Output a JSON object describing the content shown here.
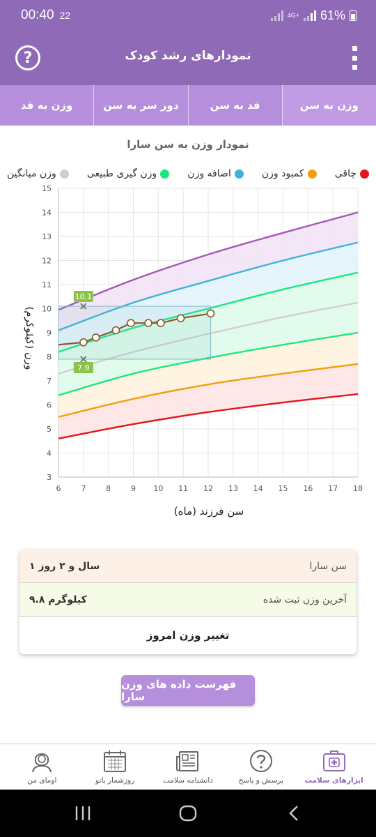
{
  "status_bar": {
    "time": "00:40",
    "sub": "22",
    "network": "4G+",
    "battery": "61%"
  },
  "header": {
    "title": "نمودارهای رشد کودک",
    "help_icon": "help-circle-icon",
    "menu_icon": "more-vertical-icon"
  },
  "tabs": [
    {
      "label": "وزن به سن",
      "active": true
    },
    {
      "label": "قد به سن",
      "active": false
    },
    {
      "label": "دور سر به سن",
      "active": false
    },
    {
      "label": "وزن به قد",
      "active": false
    }
  ],
  "chart_title": "نمودار وزن به سن سارا",
  "legend": [
    {
      "label": "چاقی",
      "color": "#e3161b"
    },
    {
      "label": "کمبود وزن",
      "color": "#f29d0f"
    },
    {
      "label": "اضافه وزن",
      "color": "#3db4d3"
    },
    {
      "label": "وزن گیری طبیعی",
      "color": "#1ee67f"
    },
    {
      "label": "وزن میانگین",
      "color": "#cfcfcf"
    }
  ],
  "chart_data": {
    "type": "line",
    "xlabel": "سن فرزند (ماه)",
    "ylabel": "وزن (کیلوگرم)",
    "xlim": [
      6,
      18
    ],
    "ylim": [
      3,
      15
    ],
    "x_ticks": [
      6,
      7,
      8,
      9,
      10,
      11,
      12,
      13,
      14,
      15,
      16,
      17,
      18
    ],
    "y_ticks": [
      3,
      4,
      5,
      6,
      7,
      8,
      9,
      10,
      11,
      12,
      13,
      14,
      15
    ],
    "grid": true,
    "curve_x": [
      6,
      9,
      12,
      15,
      18
    ],
    "series": [
      {
        "color": "#e3161b",
        "values": [
          4.6,
          5.2,
          5.7,
          6.1,
          6.45
        ]
      },
      {
        "color": "#f29d0f",
        "values": [
          5.5,
          6.25,
          6.85,
          7.3,
          7.7
        ]
      },
      {
        "color": "#1ee67f",
        "values": [
          6.4,
          7.3,
          7.95,
          8.5,
          9.0
        ]
      },
      {
        "color": "#cfcfcf",
        "values": [
          7.3,
          8.2,
          8.95,
          9.65,
          10.25
        ]
      },
      {
        "color": "#1ee67f",
        "values": [
          8.2,
          9.2,
          10.0,
          10.8,
          11.5
        ]
      },
      {
        "color": "#3db4d3",
        "values": [
          9.1,
          10.25,
          11.15,
          12.0,
          12.75
        ]
      },
      {
        "color": "#a855b8",
        "values": [
          9.95,
          11.2,
          12.25,
          13.15,
          14.0
        ]
      }
    ],
    "measurements": {
      "color": "#8b5a2b",
      "x": [
        6,
        7,
        7.5,
        8.3,
        8.9,
        9.6,
        10.1,
        10.9,
        12.1
      ],
      "y": [
        8.5,
        8.6,
        8.8,
        9.1,
        9.4,
        9.4,
        9.4,
        9.6,
        9.8
      ]
    },
    "reference_box": {
      "x": [
        6,
        12.1
      ],
      "y": [
        7.9,
        10.1
      ]
    },
    "markers": [
      {
        "x": 7,
        "y": 10.1,
        "label": "10.1"
      },
      {
        "x": 7,
        "y": 7.9,
        "label": "7.9"
      }
    ]
  },
  "info": {
    "age_label": "سن سارا",
    "age_value": "۱ سال و ۲ روز",
    "weight_label": "آخرین وزن ثبت شده",
    "weight_value": "۹.۸ کیلوگرم",
    "change_button": "تغییر وزن امروز"
  },
  "list_button": "فهرست داده های وزن سارا",
  "bottom_nav": [
    {
      "label": "ابزارهای سلامت",
      "icon": "medical-kit-icon",
      "active": true
    },
    {
      "label": "پرسش و پاسخ",
      "icon": "question-icon",
      "active": false
    },
    {
      "label": "دانشنامه سلامت",
      "icon": "newspaper-icon",
      "active": false
    },
    {
      "label": "روزشمار بانو",
      "icon": "calendar-icon",
      "active": false
    },
    {
      "label": "اومای من",
      "icon": "user-icon",
      "active": false
    }
  ]
}
